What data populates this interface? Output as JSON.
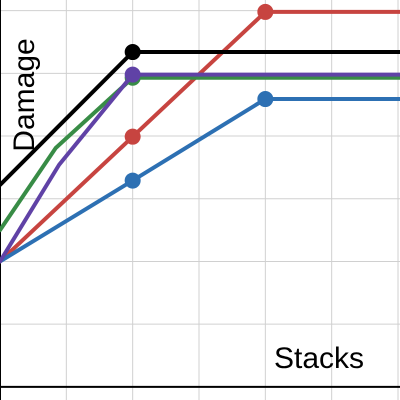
{
  "chart_data": {
    "type": "line",
    "xlabel": "Stacks",
    "ylabel": "Damage",
    "xlim": [
      0,
      6.03
    ],
    "ylim": [
      -0.21,
      6.17
    ],
    "xticks": [
      1,
      2,
      3,
      4,
      5,
      6
    ],
    "yticks": [
      0,
      1,
      2,
      3,
      4,
      5,
      6
    ],
    "grid": true,
    "series": [
      {
        "color": "#c74440",
        "x": [
          0,
          2,
          4,
          6.03
        ],
        "values": [
          2,
          3.99,
          5.98,
          5.98
        ],
        "dots": [
          false,
          true,
          true,
          false
        ]
      },
      {
        "color": "#2d70b3",
        "x": [
          0,
          2,
          4,
          6.03
        ],
        "values": [
          2,
          3.29,
          4.59,
          4.59
        ],
        "dots": [
          false,
          true,
          true,
          false
        ]
      },
      {
        "color": "#388c46",
        "x": [
          0,
          0.84,
          2,
          6.03
        ],
        "values": [
          2.5,
          3.81,
          4.93,
          4.93
        ],
        "dots": [
          false,
          false,
          true,
          false
        ]
      },
      {
        "color": "#6042a6",
        "x": [
          0,
          0.89,
          2,
          6.03
        ],
        "values": [
          2,
          3.54,
          4.98,
          4.98
        ],
        "dots": [
          false,
          false,
          true,
          false
        ]
      },
      {
        "color": "#000000",
        "x": [
          0,
          2,
          6.03
        ],
        "values": [
          3.22,
          5.34,
          5.34
        ],
        "dots": [
          false,
          true,
          false
        ]
      }
    ]
  }
}
